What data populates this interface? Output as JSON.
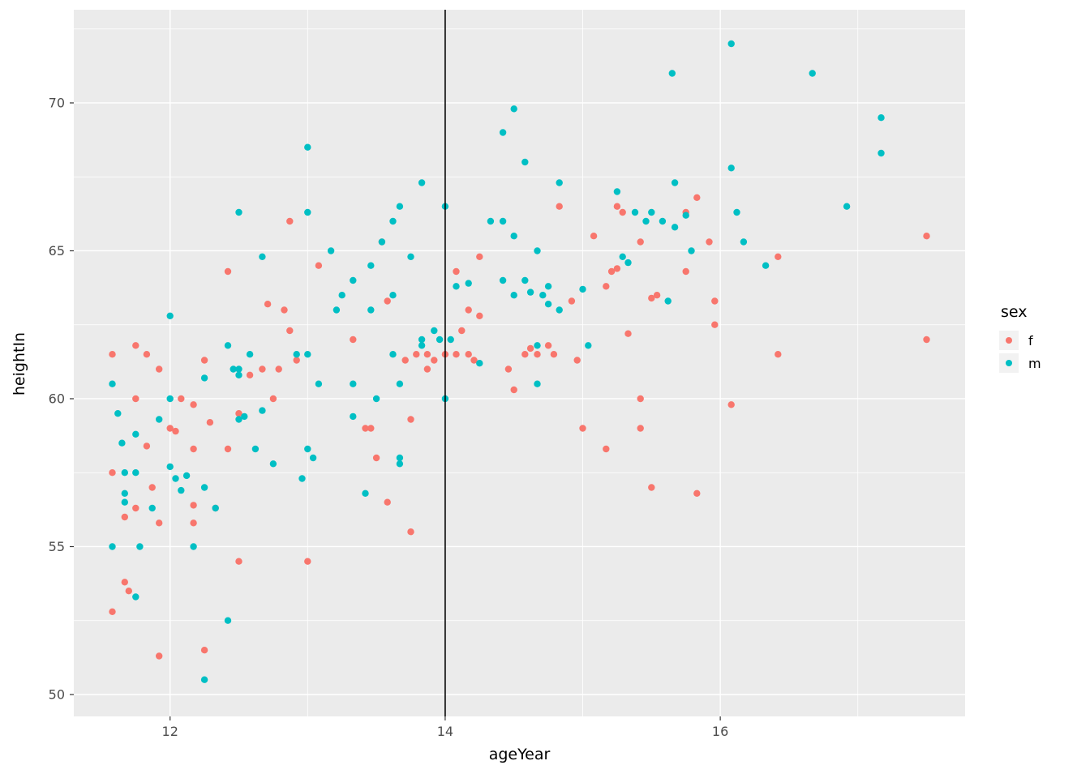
{
  "figure": {
    "background": "#FFFFFF",
    "panel_background": "#EBEBEB",
    "grid_color": "#FFFFFF",
    "tick_mark_color": "#333333",
    "tick_label_color": "#4D4D4D",
    "axis_title_color": "#000000"
  },
  "axes": {
    "x_title": "ageYear",
    "y_title": "heightIn",
    "x_tick_labels": [
      "12",
      "14",
      "16"
    ],
    "y_tick_labels": [
      "50",
      "55",
      "60",
      "65",
      "70"
    ]
  },
  "legend": {
    "title": "sex",
    "entries": [
      {
        "label": "f",
        "color": "#F8766D"
      },
      {
        "label": "m",
        "color": "#00BFC4"
      }
    ]
  },
  "chart_data": {
    "type": "scatter",
    "title": "",
    "xlabel": "ageYear",
    "ylabel": "heightIn",
    "xlim": [
      11.3,
      17.78
    ],
    "ylim": [
      49.26,
      73.15
    ],
    "x_major_ticks": [
      12,
      14,
      16
    ],
    "x_minor_ticks": [
      13,
      15,
      17
    ],
    "y_major_ticks": [
      50,
      55,
      60,
      65,
      70
    ],
    "y_minor_ticks": [
      52.5,
      57.5,
      62.5,
      67.5,
      72.5
    ],
    "grid": true,
    "legend_position": "right",
    "vline": {
      "x": 14,
      "color": "#000000"
    },
    "series": [
      {
        "name": "f",
        "color": "#F8766D",
        "points": [
          [
            11.58,
            61.5
          ],
          [
            11.58,
            57.5
          ],
          [
            11.58,
            52.8
          ],
          [
            11.67,
            56.0
          ],
          [
            11.67,
            53.8
          ],
          [
            11.7,
            53.5
          ],
          [
            11.75,
            61.8
          ],
          [
            11.75,
            60.0
          ],
          [
            11.75,
            56.3
          ],
          [
            11.83,
            61.5
          ],
          [
            11.83,
            58.4
          ],
          [
            11.87,
            57.0
          ],
          [
            11.92,
            55.8
          ],
          [
            11.92,
            51.3
          ],
          [
            11.92,
            61.0
          ],
          [
            12.0,
            59.0
          ],
          [
            12.04,
            58.9
          ],
          [
            12.08,
            60.0
          ],
          [
            12.17,
            59.8
          ],
          [
            12.17,
            58.3
          ],
          [
            12.17,
            56.4
          ],
          [
            12.17,
            55.8
          ],
          [
            12.25,
            61.3
          ],
          [
            12.25,
            51.5
          ],
          [
            12.29,
            59.2
          ],
          [
            12.33,
            56.3
          ],
          [
            12.42,
            64.3
          ],
          [
            12.42,
            58.3
          ],
          [
            12.5,
            59.5
          ],
          [
            12.5,
            54.5
          ],
          [
            12.58,
            60.8
          ],
          [
            12.67,
            61.0
          ],
          [
            12.71,
            63.2
          ],
          [
            12.75,
            60.0
          ],
          [
            12.79,
            61.0
          ],
          [
            12.83,
            63.0
          ],
          [
            12.87,
            66.0
          ],
          [
            12.87,
            62.3
          ],
          [
            12.92,
            61.3
          ],
          [
            13.0,
            54.5
          ],
          [
            13.08,
            64.5
          ],
          [
            13.33,
            62.0
          ],
          [
            13.42,
            59.0
          ],
          [
            13.46,
            59.0
          ],
          [
            13.5,
            58.0
          ],
          [
            13.54,
            65.3
          ],
          [
            13.58,
            56.5
          ],
          [
            13.58,
            63.3
          ],
          [
            13.71,
            61.3
          ],
          [
            13.75,
            59.3
          ],
          [
            13.75,
            55.5
          ],
          [
            13.79,
            61.5
          ],
          [
            13.87,
            61.0
          ],
          [
            13.87,
            61.5
          ],
          [
            13.92,
            61.3
          ],
          [
            14.0,
            61.5
          ],
          [
            14.08,
            61.5
          ],
          [
            14.08,
            64.3
          ],
          [
            14.12,
            62.3
          ],
          [
            14.17,
            63.0
          ],
          [
            14.17,
            61.5
          ],
          [
            14.21,
            61.3
          ],
          [
            14.25,
            64.8
          ],
          [
            14.25,
            62.8
          ],
          [
            14.46,
            61.0
          ],
          [
            14.5,
            60.3
          ],
          [
            14.58,
            61.5
          ],
          [
            14.62,
            61.7
          ],
          [
            14.67,
            61.5
          ],
          [
            14.75,
            61.8
          ],
          [
            14.79,
            61.5
          ],
          [
            14.83,
            66.5
          ],
          [
            14.92,
            63.3
          ],
          [
            14.96,
            61.3
          ],
          [
            15.0,
            59.0
          ],
          [
            15.08,
            65.5
          ],
          [
            15.17,
            58.3
          ],
          [
            15.17,
            63.8
          ],
          [
            15.21,
            64.3
          ],
          [
            15.25,
            64.4
          ],
          [
            15.25,
            66.5
          ],
          [
            15.29,
            66.3
          ],
          [
            15.33,
            62.2
          ],
          [
            15.42,
            59.0
          ],
          [
            15.42,
            60.0
          ],
          [
            15.42,
            65.3
          ],
          [
            15.5,
            57.0
          ],
          [
            15.5,
            63.4
          ],
          [
            15.54,
            63.5
          ],
          [
            15.75,
            66.3
          ],
          [
            15.75,
            64.3
          ],
          [
            15.83,
            66.8
          ],
          [
            15.83,
            56.8
          ],
          [
            15.92,
            65.3
          ],
          [
            15.96,
            63.3
          ],
          [
            15.96,
            62.5
          ],
          [
            16.08,
            59.8
          ],
          [
            16.42,
            61.5
          ],
          [
            16.42,
            64.8
          ],
          [
            17.5,
            65.5
          ],
          [
            17.5,
            62.0
          ]
        ]
      },
      {
        "name": "m",
        "color": "#00BFC4",
        "points": [
          [
            11.58,
            60.5
          ],
          [
            11.58,
            55.0
          ],
          [
            11.62,
            59.5
          ],
          [
            11.65,
            58.5
          ],
          [
            11.67,
            57.5
          ],
          [
            11.67,
            56.8
          ],
          [
            11.67,
            56.5
          ],
          [
            11.75,
            53.3
          ],
          [
            11.75,
            58.8
          ],
          [
            11.75,
            57.5
          ],
          [
            11.78,
            55.0
          ],
          [
            11.87,
            56.3
          ],
          [
            11.92,
            59.3
          ],
          [
            12.0,
            62.8
          ],
          [
            12.0,
            60.0
          ],
          [
            12.0,
            57.7
          ],
          [
            12.04,
            57.3
          ],
          [
            12.08,
            56.9
          ],
          [
            12.12,
            57.4
          ],
          [
            12.17,
            55.0
          ],
          [
            12.25,
            60.7
          ],
          [
            12.25,
            57.0
          ],
          [
            12.25,
            50.5
          ],
          [
            12.33,
            56.3
          ],
          [
            12.42,
            52.5
          ],
          [
            12.42,
            61.8
          ],
          [
            12.46,
            61.0
          ],
          [
            12.5,
            66.3
          ],
          [
            12.5,
            61.0
          ],
          [
            12.5,
            60.8
          ],
          [
            12.5,
            59.3
          ],
          [
            12.54,
            59.4
          ],
          [
            12.58,
            61.5
          ],
          [
            12.62,
            58.3
          ],
          [
            12.67,
            59.6
          ],
          [
            12.67,
            64.8
          ],
          [
            12.75,
            57.8
          ],
          [
            12.92,
            61.5
          ],
          [
            12.96,
            57.3
          ],
          [
            13.0,
            68.5
          ],
          [
            13.0,
            66.3
          ],
          [
            13.0,
            61.5
          ],
          [
            13.0,
            58.3
          ],
          [
            13.04,
            58.0
          ],
          [
            13.08,
            60.5
          ],
          [
            13.17,
            65.0
          ],
          [
            13.21,
            63.0
          ],
          [
            13.25,
            63.5
          ],
          [
            13.33,
            64.0
          ],
          [
            13.33,
            60.5
          ],
          [
            13.33,
            59.4
          ],
          [
            13.42,
            56.8
          ],
          [
            13.46,
            63.0
          ],
          [
            13.46,
            64.5
          ],
          [
            13.5,
            60.0
          ],
          [
            13.54,
            65.3
          ],
          [
            13.62,
            66.0
          ],
          [
            13.62,
            63.5
          ],
          [
            13.62,
            61.5
          ],
          [
            13.67,
            66.5
          ],
          [
            13.67,
            60.5
          ],
          [
            13.67,
            58.0
          ],
          [
            13.67,
            57.8
          ],
          [
            13.75,
            64.8
          ],
          [
            13.83,
            67.3
          ],
          [
            13.83,
            62.0
          ],
          [
            13.83,
            61.8
          ],
          [
            13.92,
            62.3
          ],
          [
            13.96,
            62.0
          ],
          [
            14.0,
            66.5
          ],
          [
            14.0,
            60.0
          ],
          [
            14.04,
            62.0
          ],
          [
            14.08,
            63.8
          ],
          [
            14.17,
            63.9
          ],
          [
            14.25,
            61.2
          ],
          [
            14.33,
            66.0
          ],
          [
            14.42,
            69.0
          ],
          [
            14.42,
            66.0
          ],
          [
            14.42,
            64.0
          ],
          [
            14.5,
            69.8
          ],
          [
            14.5,
            65.5
          ],
          [
            14.5,
            63.5
          ],
          [
            14.58,
            68.0
          ],
          [
            14.58,
            64.0
          ],
          [
            14.62,
            63.6
          ],
          [
            14.67,
            65.0
          ],
          [
            14.67,
            61.8
          ],
          [
            14.67,
            60.5
          ],
          [
            14.71,
            63.5
          ],
          [
            14.75,
            63.8
          ],
          [
            14.75,
            63.2
          ],
          [
            14.83,
            67.3
          ],
          [
            14.83,
            63.0
          ],
          [
            15.0,
            63.7
          ],
          [
            15.04,
            61.8
          ],
          [
            15.25,
            67.0
          ],
          [
            15.29,
            64.8
          ],
          [
            15.33,
            64.6
          ],
          [
            15.38,
            66.3
          ],
          [
            15.46,
            66.0
          ],
          [
            15.5,
            66.3
          ],
          [
            15.58,
            66.0
          ],
          [
            15.62,
            63.3
          ],
          [
            15.65,
            71.0
          ],
          [
            15.67,
            67.3
          ],
          [
            15.67,
            65.8
          ],
          [
            15.75,
            66.2
          ],
          [
            15.79,
            65.0
          ],
          [
            16.08,
            72.0
          ],
          [
            16.08,
            67.8
          ],
          [
            16.12,
            66.3
          ],
          [
            16.17,
            65.3
          ],
          [
            16.33,
            64.5
          ],
          [
            16.67,
            71.0
          ],
          [
            16.92,
            66.5
          ],
          [
            17.17,
            69.5
          ],
          [
            17.17,
            68.3
          ]
        ]
      }
    ]
  }
}
